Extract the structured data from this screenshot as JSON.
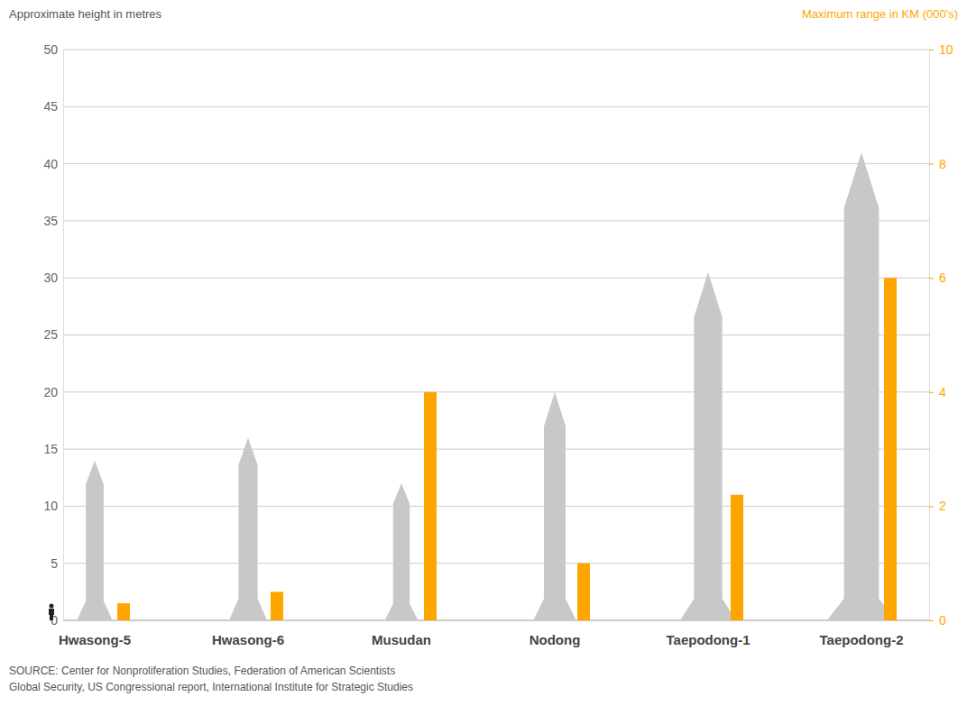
{
  "chart_data": {
    "type": "bar",
    "categories": [
      "Hwasong-5",
      "Hwasong-6",
      "Musudan",
      "Nodong",
      "Taepodong-1",
      "Taepodong-2"
    ],
    "series": [
      {
        "name": "Approximate height in metres",
        "type": "bar",
        "marker": "rocket",
        "color": "#c8c8c8",
        "values": [
          14,
          16,
          12,
          20,
          30.5,
          41
        ]
      },
      {
        "name": "Maximum range in KM (000's)",
        "type": "bar",
        "axis": "y2",
        "color": "#ffa500",
        "values": [
          0.3,
          0.5,
          4,
          1,
          2.2,
          6
        ]
      }
    ],
    "ylim": [
      0,
      50
    ],
    "yticks": [
      0,
      5,
      10,
      15,
      20,
      25,
      30,
      35,
      40,
      45,
      50
    ],
    "y2lim": [
      0,
      10
    ],
    "y2ticks": [
      0,
      2,
      4,
      6,
      8,
      10
    ],
    "grid": true,
    "source": [
      "SOURCE: Center for Nonproliferation Studies, Federation of American Scientists",
      "Global Security, US Congressional report, International Institute for Strategic Studies"
    ]
  }
}
